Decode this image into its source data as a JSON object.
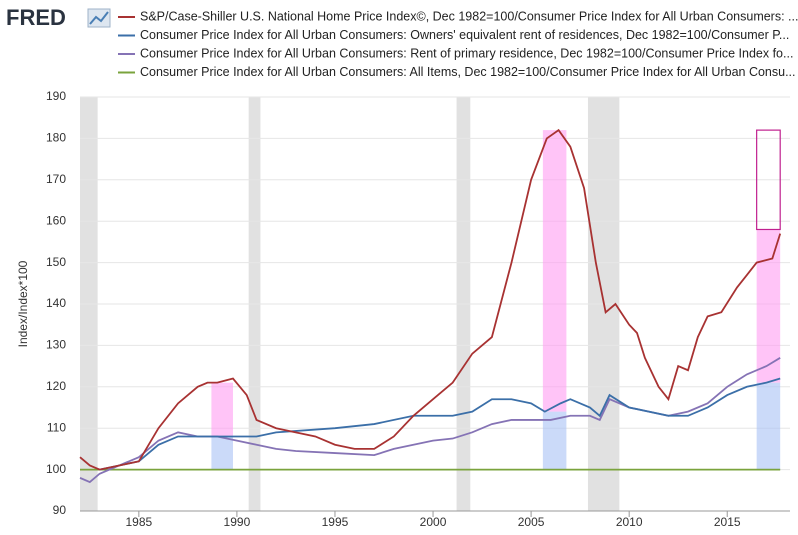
{
  "logo": "FRED",
  "chart_data": {
    "type": "line",
    "y_label": "Index/Index*100",
    "xlim": [
      1982.0,
      2018.2
    ],
    "xticks": [
      1985,
      1990,
      1995,
      2000,
      2005,
      2010,
      2015
    ],
    "ylim": [
      90,
      190
    ],
    "yticks": [
      90,
      100,
      110,
      120,
      130,
      140,
      150,
      160,
      170,
      180,
      190
    ],
    "grid": true,
    "recessions": [
      [
        1981.5,
        1982.9
      ],
      [
        1990.6,
        1991.2
      ],
      [
        2001.2,
        2001.9
      ],
      [
        2007.9,
        2009.5
      ]
    ],
    "highlights": [
      {
        "x0": 1988.7,
        "x1": 1989.8,
        "y0": 108,
        "y1": 121,
        "color": "#ff9cf2"
      },
      {
        "x0": 1988.7,
        "x1": 1989.8,
        "y0": 100,
        "y1": 108,
        "color": "#a9c2f5"
      },
      {
        "x0": 2005.6,
        "x1": 2006.8,
        "y0": 114,
        "y1": 182,
        "color": "#ff9cf2"
      },
      {
        "x0": 2005.6,
        "x1": 2006.8,
        "y0": 100,
        "y1": 114,
        "color": "#a9c2f5"
      },
      {
        "x0": 2016.5,
        "x1": 2017.7,
        "y0": 121,
        "y1": 158,
        "color": "#ff9cf2"
      },
      {
        "x0": 2016.5,
        "x1": 2017.7,
        "y0": 100,
        "y1": 121,
        "color": "#a9c2f5"
      },
      {
        "x0": 2016.5,
        "x1": 2017.7,
        "y0": 158,
        "y1": 182,
        "outline": "#c0208f"
      }
    ],
    "series": [
      {
        "name": "S&P/Case-Shiller U.S. National Home Price Index©, Dec 1982=100/Consumer Price Index for All Urban Consumers: ...",
        "color": "#a83232",
        "x": [
          1982.0,
          1982.5,
          1983,
          1984,
          1985,
          1986,
          1987,
          1988,
          1988.5,
          1989,
          1989.8,
          1990.5,
          1991,
          1992,
          1993,
          1994,
          1995,
          1996,
          1997,
          1998,
          1999,
          2000,
          2001,
          2002,
          2003,
          2004,
          2005,
          2005.8,
          2006.4,
          2007,
          2007.7,
          2008.3,
          2008.8,
          2009.3,
          2010,
          2010.4,
          2010.8,
          2011.5,
          2012,
          2012.5,
          2013,
          2013.5,
          2014,
          2014.7,
          2015.5,
          2016,
          2016.5,
          2017.3,
          2017.7
        ],
        "values": [
          103,
          101,
          100,
          101,
          102,
          110,
          116,
          120,
          121,
          121,
          122,
          118,
          112,
          110,
          109,
          108,
          106,
          105,
          105,
          108,
          113,
          117,
          121,
          128,
          132,
          150,
          170,
          180,
          182,
          178,
          168,
          150,
          138,
          140,
          135,
          133,
          127,
          120,
          117,
          125,
          124,
          132,
          137,
          138,
          144,
          147,
          150,
          151,
          157
        ]
      },
      {
        "name": "Consumer Price Index for All Urban Consumers: Owners' equivalent rent of residences, Dec 1982=100/Consumer P...",
        "color": "#3b6fa8",
        "x": [
          1983,
          1985,
          1986,
          1987,
          1988,
          1989,
          1990,
          1991,
          1992,
          1995,
          1997,
          1999,
          2000,
          2001,
          2002,
          2003,
          2004,
          2005,
          2005.7,
          2006.5,
          2007,
          2008,
          2008.5,
          2009,
          2010,
          2011,
          2012,
          2013,
          2014,
          2015,
          2016,
          2017,
          2017.7
        ],
        "values": [
          100,
          102,
          106,
          108,
          108,
          108,
          108,
          108,
          109,
          110,
          111,
          113,
          113,
          113,
          114,
          117,
          117,
          116,
          114,
          116,
          117,
          115,
          113,
          118,
          115,
          114,
          113,
          113,
          115,
          118,
          120,
          121,
          122
        ]
      },
      {
        "name": "Consumer Price Index for All Urban Consumers: Rent of primary residence, Dec 1982=100/Consumer Price Index fo...",
        "color": "#8573b5",
        "x": [
          1982.0,
          1982.5,
          1983,
          1984,
          1985,
          1986,
          1987,
          1988,
          1989,
          1990,
          1991,
          1992,
          1993,
          1995,
          1997,
          1998,
          1999,
          2000,
          2001,
          2002,
          2003,
          2004,
          2005,
          2006,
          2007,
          2008,
          2008.5,
          2009,
          2010,
          2011,
          2012,
          2013,
          2014,
          2015,
          2016,
          2017,
          2017.7
        ],
        "values": [
          98,
          97,
          99,
          101,
          103,
          107,
          109,
          108,
          108,
          107,
          106,
          105,
          104.5,
          104,
          103.5,
          105,
          106,
          107,
          107.5,
          109,
          111,
          112,
          112,
          112,
          113,
          113,
          112,
          117,
          115,
          114,
          113,
          114,
          116,
          120,
          123,
          125,
          127
        ]
      },
      {
        "name": "Consumer Price Index for All Urban Consumers: All Items, Dec 1982=100/Consumer Price Index for All Urban Consu...",
        "color": "#7aa33c",
        "x": [
          1982.0,
          2017.7
        ],
        "values": [
          100,
          100
        ]
      }
    ]
  }
}
